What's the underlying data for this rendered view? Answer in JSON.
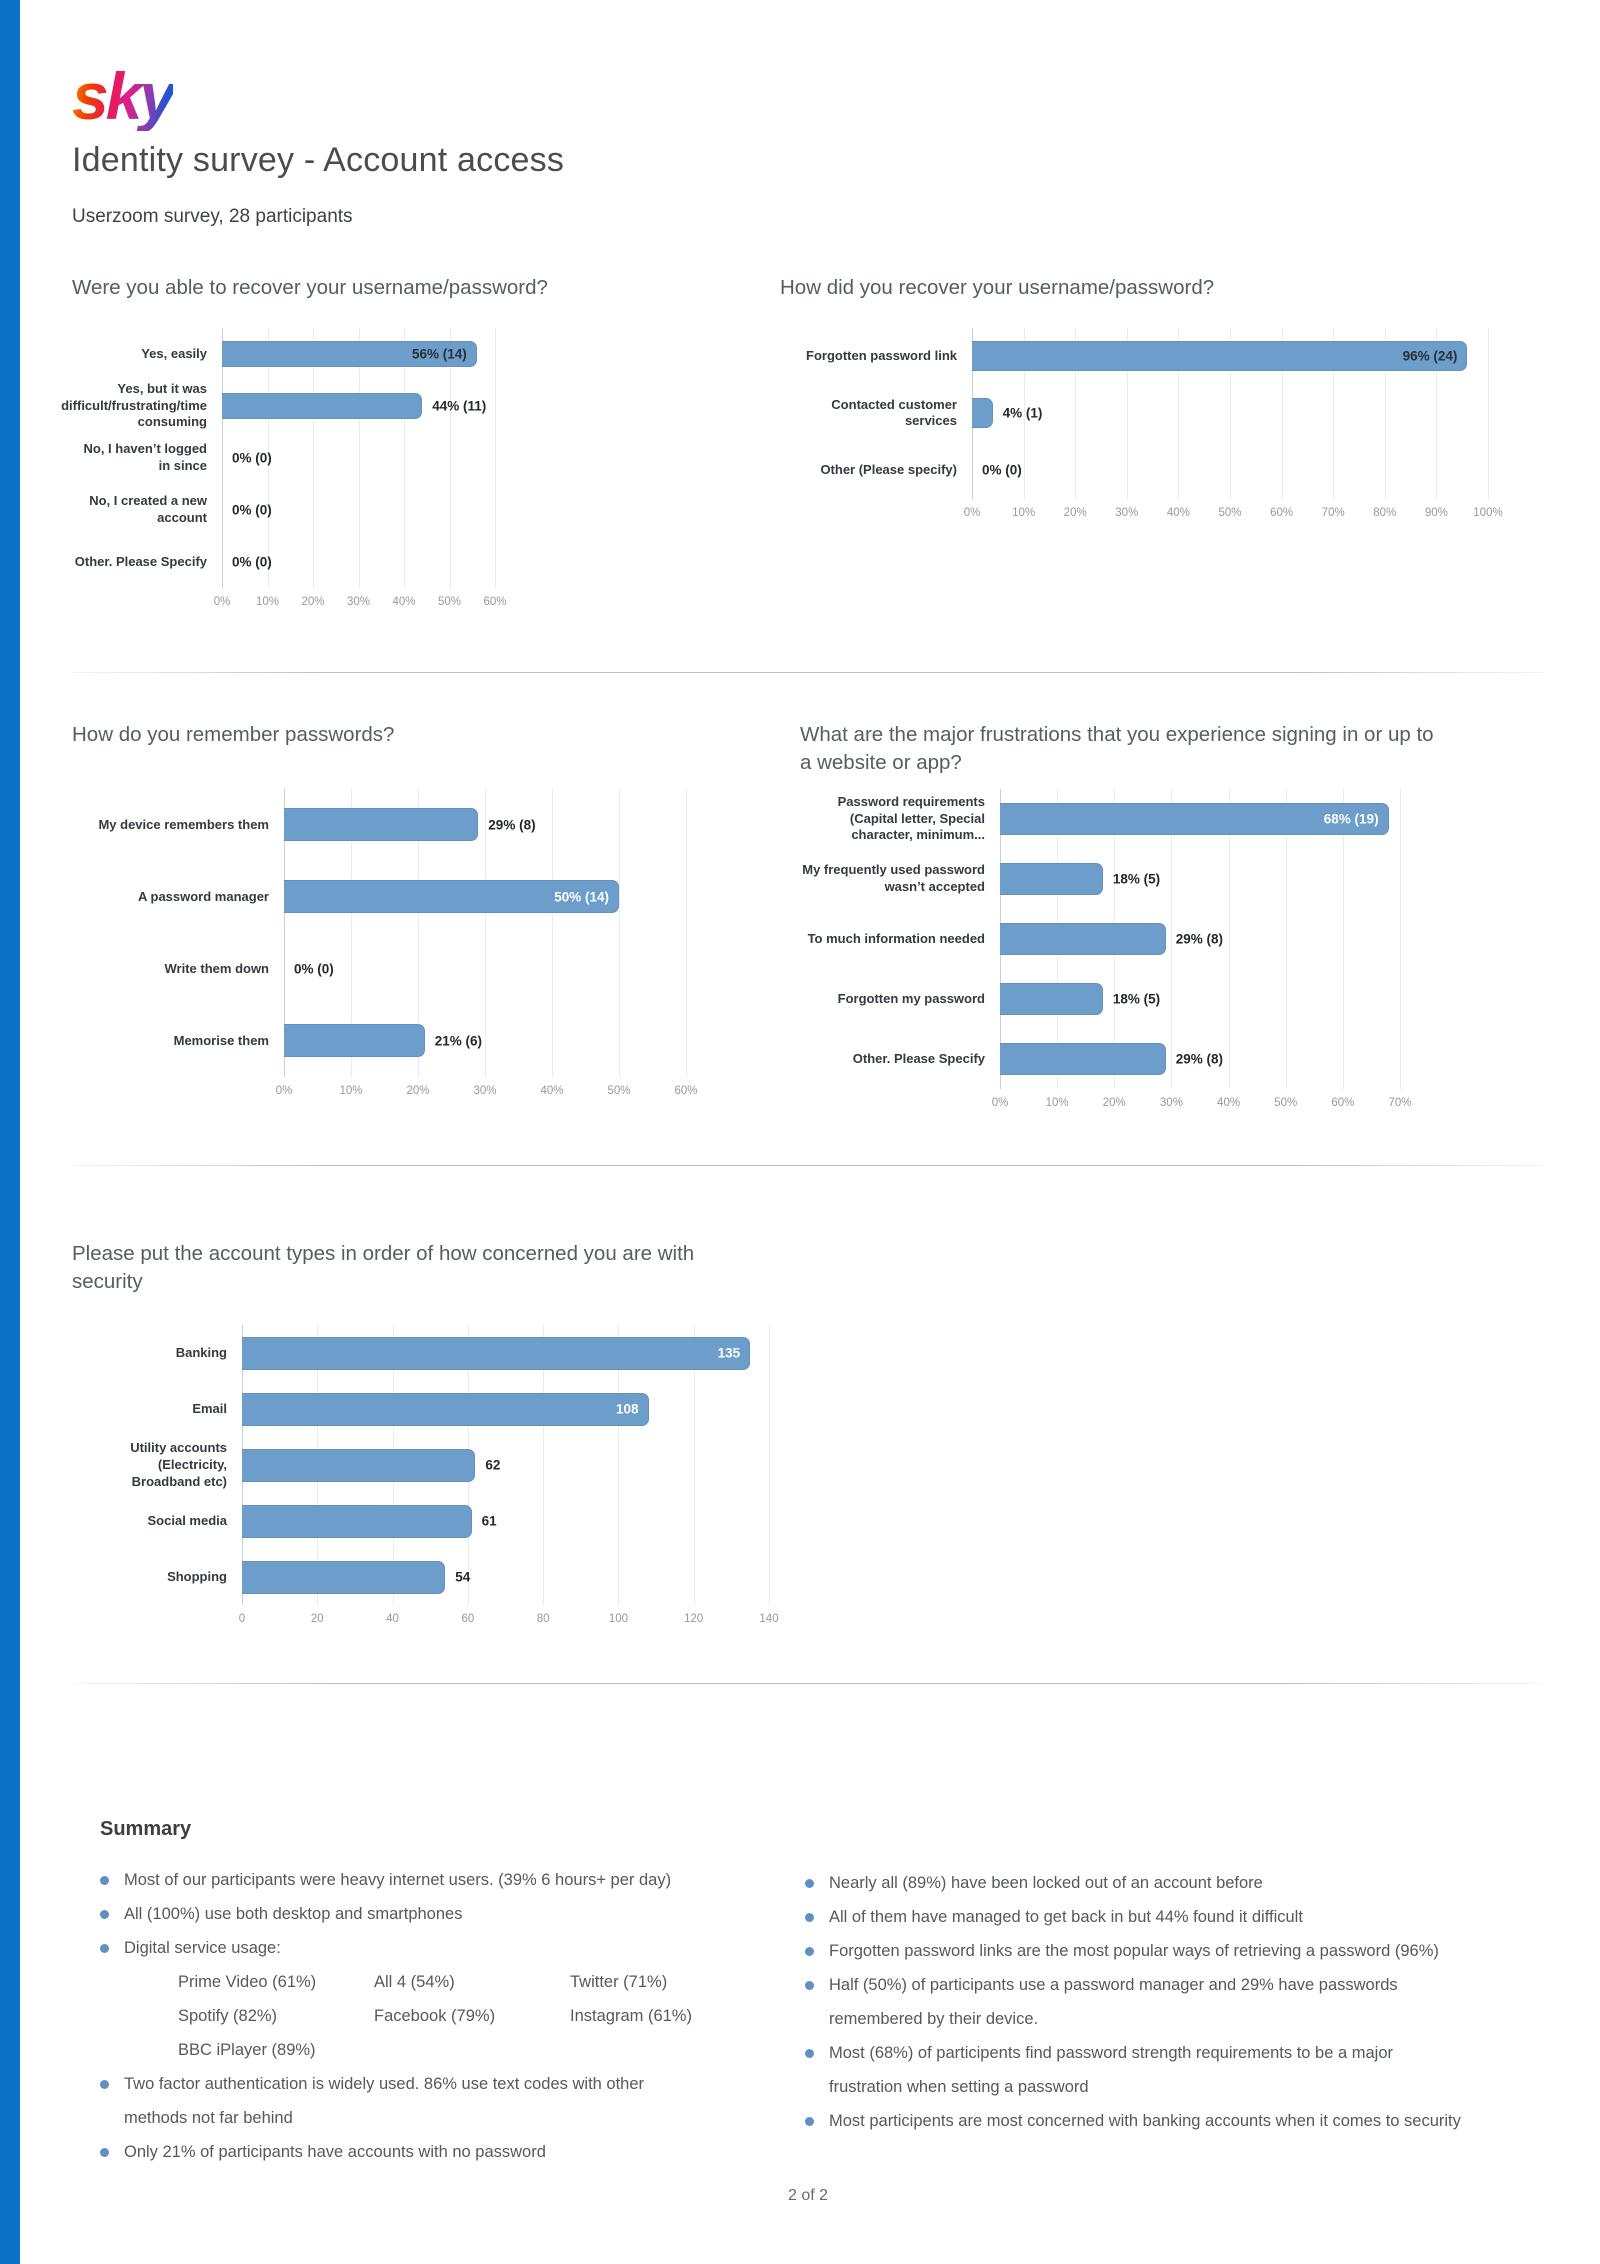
{
  "page": {
    "logo_text": "sky",
    "title": "Identity survey - Account access",
    "subtitle": "Userzoom survey, 28 participants",
    "footer": "2 of 2"
  },
  "colors": {
    "bar_fill": "#6d9dcb",
    "left_stripe": "#0b72c6",
    "bullet_dot": "#5e90c6"
  },
  "chart_data": [
    {
      "type": "bar",
      "orientation": "horizontal",
      "title": "Were you able to recover your username/password?",
      "categories": [
        "Yes, easily",
        "Yes, but it was\ndifficult/frustrating/time\nconsuming",
        "No, I haven’t logged in since",
        "No, I created a new account",
        "Other. Please Specify"
      ],
      "values": [
        56,
        44,
        0,
        0,
        0
      ],
      "counts": [
        14,
        11,
        0,
        0,
        0
      ],
      "value_labels": [
        "56% (14)",
        "44% (11)",
        "0% (0)",
        "0% (0)",
        "0% (0)"
      ],
      "xlim": [
        0,
        60
      ],
      "tick_step": 10,
      "tick_suffix": "%",
      "grid": true,
      "label_inside": [
        true,
        false,
        false,
        false,
        false
      ],
      "inside_label_color": "#2a3138"
    },
    {
      "type": "bar",
      "orientation": "horizontal",
      "title": "How did you recover your username/password?",
      "categories": [
        "Forgotten password link",
        "Contacted customer services",
        "Other (Please specify)"
      ],
      "values": [
        96,
        4,
        0
      ],
      "counts": [
        24,
        1,
        0
      ],
      "value_labels": [
        "96% (24)",
        "4% (1)",
        "0% (0)"
      ],
      "xlim": [
        0,
        100
      ],
      "tick_step": 10,
      "tick_suffix": "%",
      "grid": true,
      "label_inside": [
        true,
        false,
        false
      ],
      "inside_label_color": "#2a3138"
    },
    {
      "type": "bar",
      "orientation": "horizontal",
      "title": "How do you remember passwords?",
      "categories": [
        "My device remembers them",
        "A password manager",
        "Write them down",
        "Memorise them"
      ],
      "values": [
        29,
        50,
        0,
        21
      ],
      "counts": [
        8,
        14,
        0,
        6
      ],
      "value_labels": [
        "29% (8)",
        "50% (14)",
        "0% (0)",
        "21% (6)"
      ],
      "xlim": [
        0,
        60
      ],
      "tick_step": 10,
      "tick_suffix": "%",
      "grid": true,
      "label_inside": [
        false,
        true,
        false,
        false
      ],
      "inside_label_color": "#ffffff"
    },
    {
      "type": "bar",
      "orientation": "horizontal",
      "title": "What are the major frustrations that you experience signing in or up to a website or app?",
      "categories": [
        "Password requirements\n(Capital letter, Special\ncharacter, minimum...",
        "My frequently used password\nwasn’t accepted",
        "To much information needed",
        "Forgotten my password",
        "Other. Please Specify"
      ],
      "values": [
        68,
        18,
        29,
        18,
        29
      ],
      "counts": [
        19,
        5,
        8,
        5,
        8
      ],
      "value_labels": [
        "68% (19)",
        "18% (5)",
        "29% (8)",
        "18% (5)",
        "29% (8)"
      ],
      "xlim": [
        0,
        70
      ],
      "tick_step": 10,
      "tick_suffix": "%",
      "grid": true,
      "label_inside": [
        true,
        false,
        false,
        false,
        false
      ],
      "inside_label_color": "#ffffff"
    },
    {
      "type": "bar",
      "orientation": "horizontal",
      "title": "Please put the account types in order of how concerned you are with security",
      "categories": [
        "Banking",
        "Email",
        "Utility accounts (Electricity,\nBroadband etc)",
        "Social media",
        "Shopping"
      ],
      "values": [
        135,
        108,
        62,
        61,
        54
      ],
      "value_labels": [
        "135",
        "108",
        "62",
        "61",
        "54"
      ],
      "xlim": [
        0,
        140
      ],
      "tick_step": 20,
      "tick_suffix": "",
      "grid": true,
      "label_inside": [
        true,
        true,
        false,
        false,
        false
      ],
      "inside_label_color": "#ffffff"
    }
  ],
  "summary": {
    "heading": "Summary",
    "left_bullets": [
      {
        "text": "Most of our participants were heavy internet users. (39% 6 hours+ per day)"
      },
      {
        "text": "All (100%) use both desktop and smartphones"
      },
      {
        "text": "Digital service usage:",
        "sub_items": [
          "Prime Video (61%)",
          "All 4 (54%)",
          "Twitter (71%)",
          "Spotify (82%)",
          "Facebook (79%)",
          "Instagram (61%)",
          "BBC iPlayer (89%)"
        ]
      },
      {
        "text": "Two factor authentication is widely used. 86% use text codes with other\nmethods not far behind"
      },
      {
        "text": "Only 21% of participants have accounts with no password"
      }
    ],
    "right_bullets": [
      "Nearly all (89%) have been locked out of an account before",
      "All of them have managed to get back in but 44% found it difficult",
      "Forgotten password links are the most popular ways of retrieving a password (96%)",
      "Half (50%) of participants use a password manager and 29% have passwords\nremembered by their device.",
      "Most (68%) of participents find password strength requirements to be a major\nfrustration when setting a password",
      "Most participents are most concerned with banking accounts when it comes to security"
    ]
  }
}
